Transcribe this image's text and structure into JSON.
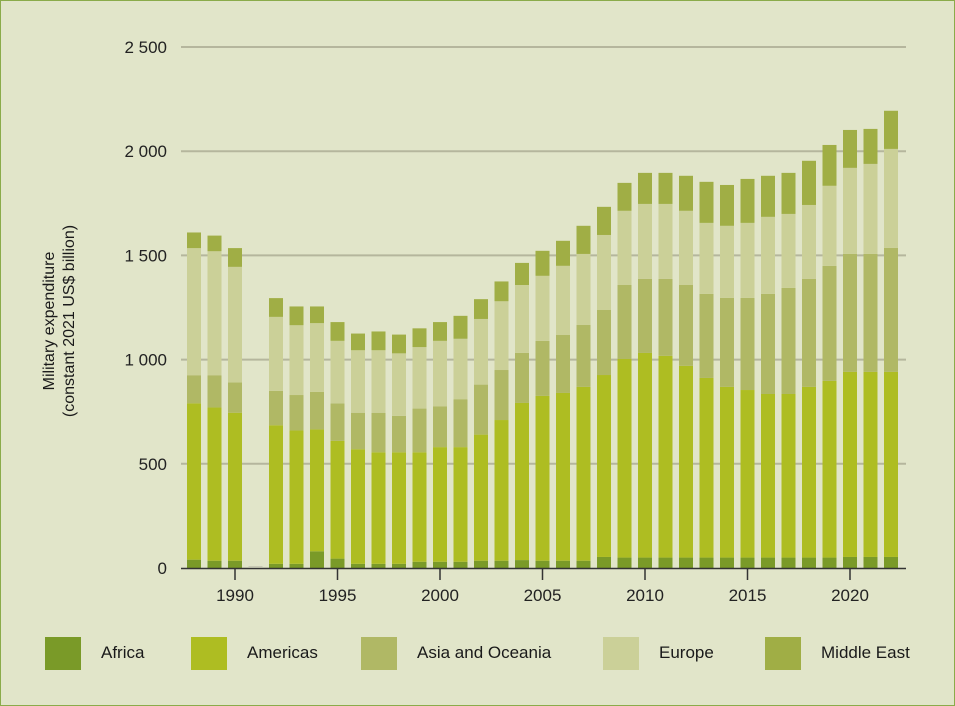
{
  "chart_data": {
    "type": "bar",
    "stacked": true,
    "title": "",
    "ylabel": [
      "Military expenditure",
      "(constant 2021 US$ billion)"
    ],
    "xlabel": "",
    "ylim": [
      0,
      2500
    ],
    "yticks": [
      0,
      500,
      1000,
      1500,
      2000,
      2500
    ],
    "ytick_labels": [
      "0",
      "500",
      "1 000",
      "1 500",
      "2 000",
      "2 500"
    ],
    "xticks": [
      1990,
      1995,
      2000,
      2005,
      2010,
      2015,
      2020
    ],
    "ytick_labels_note": "",
    "grid": true,
    "legend_position": "bottom",
    "categories": [
      1988,
      1989,
      1990,
      1991,
      1992,
      1993,
      1994,
      1995,
      1996,
      1997,
      1998,
      1999,
      2000,
      2001,
      2002,
      2003,
      2004,
      2005,
      2006,
      2007,
      2008,
      2009,
      2010,
      2011,
      2012,
      2013,
      2014,
      2015,
      2016,
      2017,
      2018,
      2019,
      2020,
      2021,
      2022
    ],
    "series": [
      {
        "name": "Africa",
        "color": "#7a9a28",
        "values": [
          40,
          35,
          35,
          null,
          20,
          20,
          80,
          45,
          20,
          20,
          20,
          30,
          30,
          30,
          35,
          35,
          38,
          35,
          35,
          35,
          53,
          50,
          50,
          50,
          50,
          50,
          50,
          50,
          50,
          50,
          50,
          50,
          53,
          53,
          53
        ]
      },
      {
        "name": "Americas",
        "color": "#aebd22",
        "values": [
          750,
          735,
          710,
          null,
          665,
          640,
          585,
          565,
          550,
          535,
          535,
          525,
          550,
          550,
          605,
          675,
          754,
          791,
          805,
          834,
          873,
          953,
          982,
          968,
          920,
          862,
          819,
          804,
          785,
          785,
          819,
          848,
          888,
          888,
          888
        ]
      },
      {
        "name": "Asia and Oceania",
        "color": "#b0b865",
        "values": [
          135,
          155,
          145,
          null,
          165,
          170,
          180,
          180,
          175,
          190,
          175,
          210,
          195,
          230,
          240,
          240,
          240,
          264,
          278,
          297,
          312,
          355,
          355,
          369,
          388,
          403,
          427,
          442,
          480,
          509,
          518,
          552,
          566,
          566,
          595
        ]
      },
      {
        "name": "Europe",
        "color": "#cbd098",
        "values": [
          610,
          595,
          555,
          null,
          355,
          335,
          330,
          300,
          300,
          300,
          300,
          295,
          315,
          290,
          315,
          330,
          326,
          312,
          332,
          341,
          360,
          356,
          360,
          360,
          356,
          341,
          346,
          360,
          370,
          355,
          355,
          384,
          413,
          432,
          475
        ]
      },
      {
        "name": "Middle East",
        "color": "#a0ae45",
        "values": [
          75,
          75,
          90,
          null,
          90,
          90,
          80,
          90,
          80,
          90,
          90,
          90,
          90,
          110,
          95,
          95,
          106,
          120,
          120,
          135,
          135,
          134,
          149,
          149,
          168,
          197,
          196,
          211,
          197,
          197,
          212,
          196,
          182,
          168,
          183
        ]
      }
    ]
  }
}
